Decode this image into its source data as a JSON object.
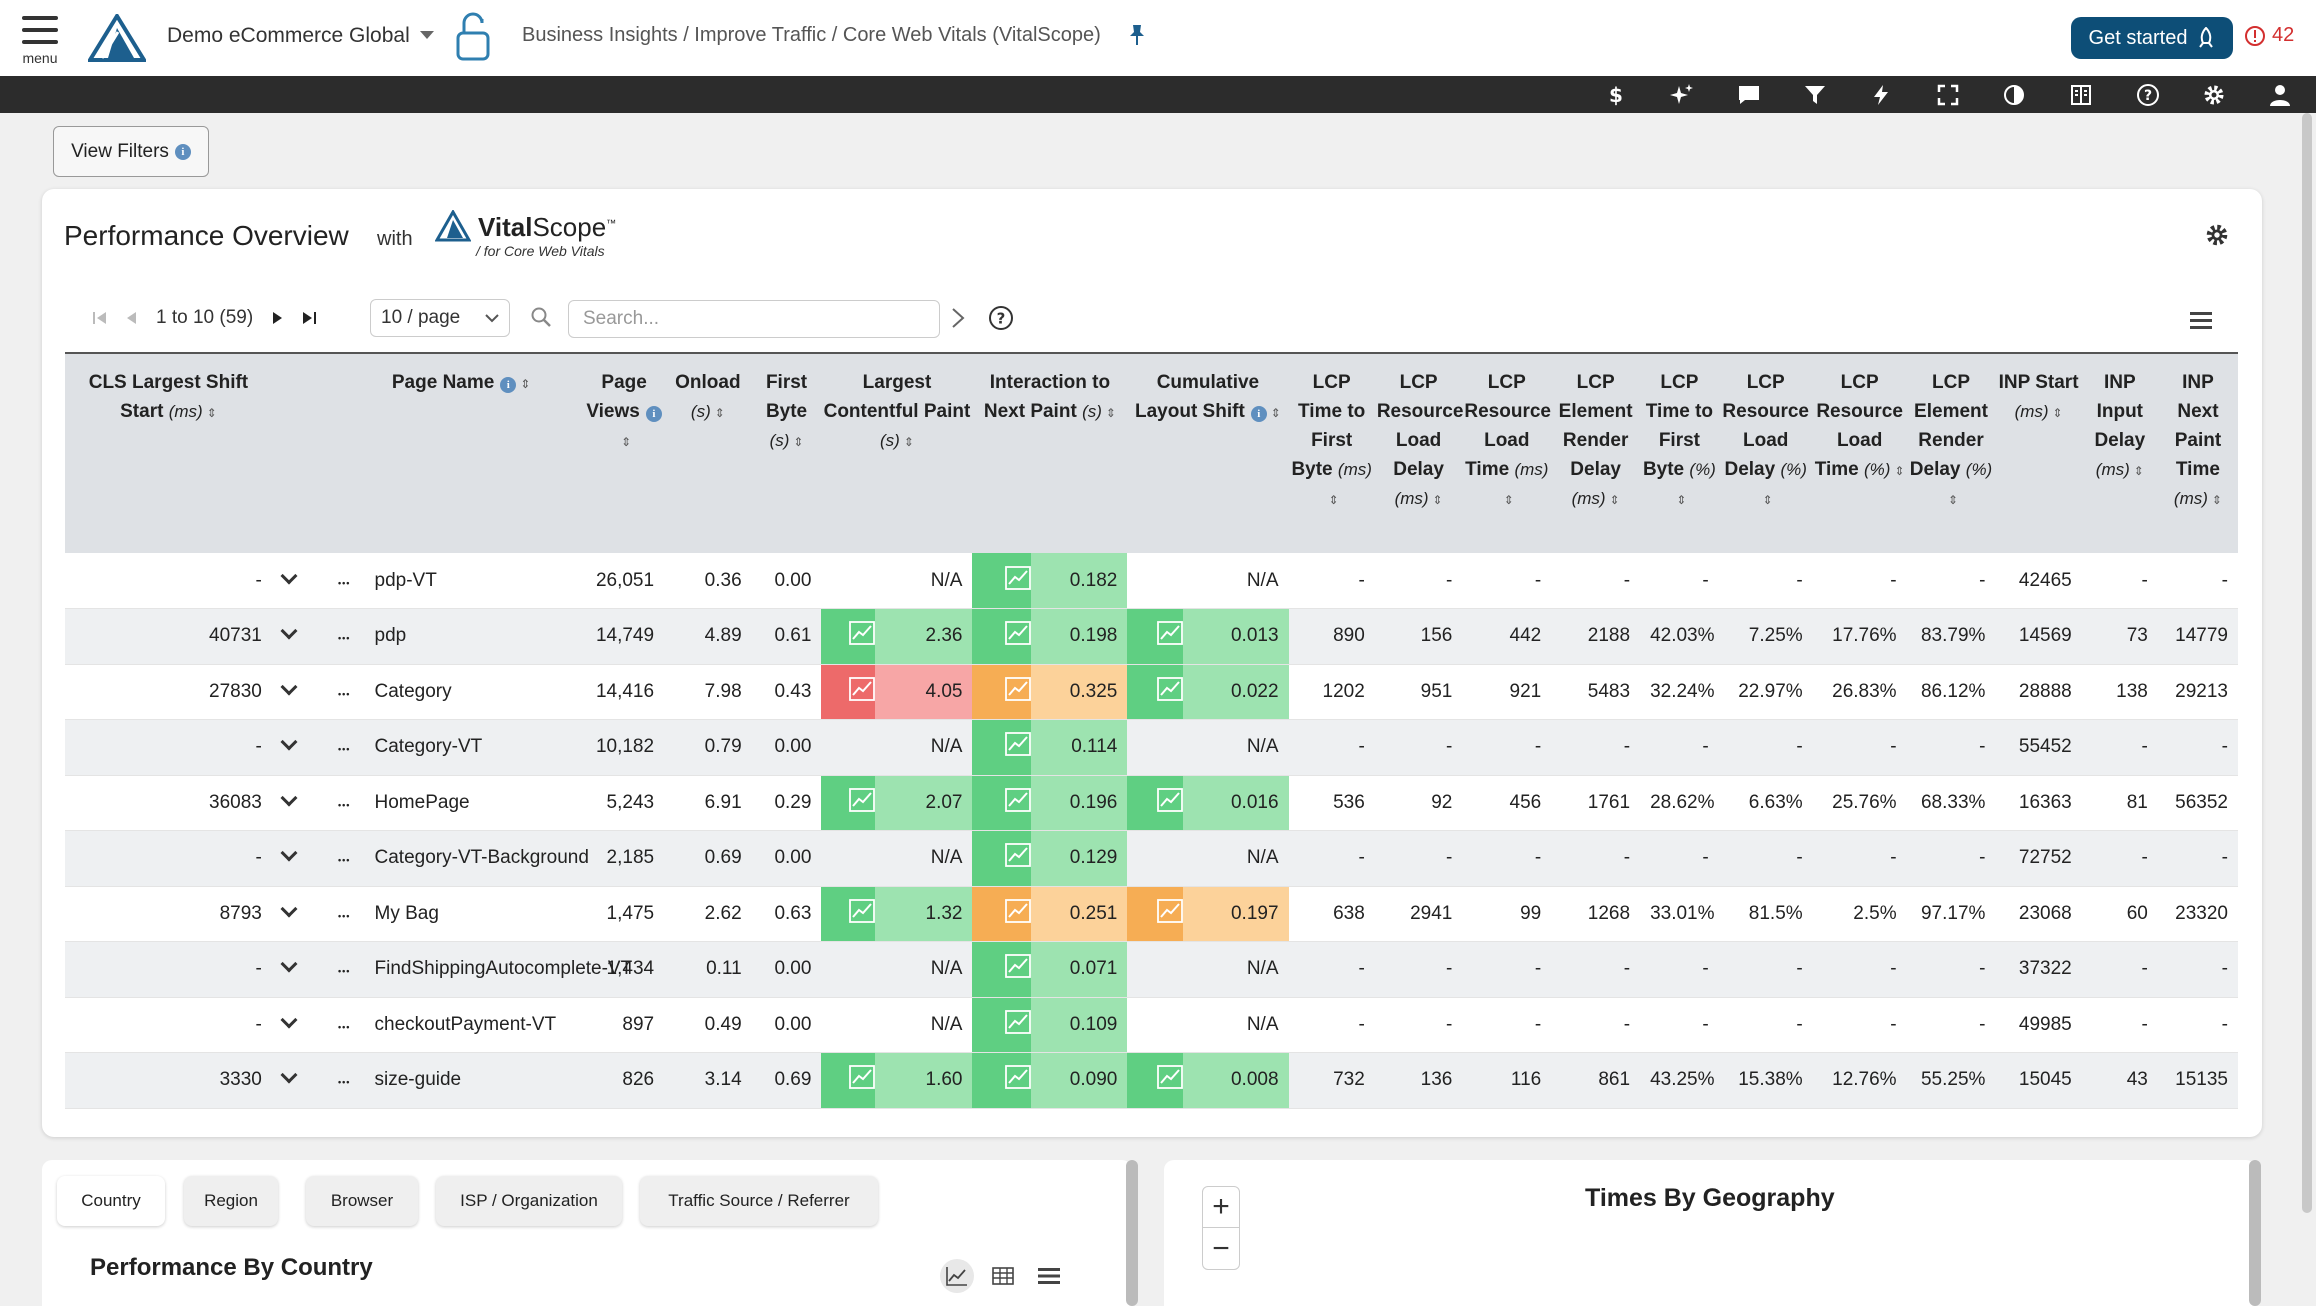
{
  "header": {
    "menu_label": "menu",
    "org_name": "Demo eCommerce Global",
    "breadcrumb": "Business Insights / Improve Traffic / Core Web Vitals (VitalScope)",
    "get_started": "Get started",
    "alert_count": "42",
    "brand_color": "#0d4e77"
  },
  "toolbar": {
    "icons": [
      "dollar-icon",
      "sparkle-icon",
      "chat-icon",
      "filter-icon",
      "bolt-icon",
      "fullscreen-icon",
      "contrast-icon",
      "book-icon",
      "help-icon",
      "gear-icon",
      "user-icon"
    ]
  },
  "filters": {
    "view_filters": "View Filters"
  },
  "panel": {
    "title": "Performance Overview",
    "with": "with",
    "brand_a": "Vital",
    "brand_b": "Scope",
    "brand_tm": "™",
    "brand_sub": "/ for Core Web Vitals",
    "pager_text": "1 to 10 (59)",
    "per_page": "10 / page",
    "search_placeholder": "Search..."
  },
  "table": {
    "columns": [
      {
        "t": "CLS Largest Shift Start",
        "u": "(ms)"
      },
      {
        "t": "Page Name",
        "u": ""
      },
      {
        "t": "Page Views",
        "u": ""
      },
      {
        "t": "Onload",
        "u": "(s)"
      },
      {
        "t": "First Byte",
        "u": "(s)"
      },
      {
        "t": "Largest Contentful Paint",
        "u": "(s)"
      },
      {
        "t": "Interaction to Next Paint",
        "u": "(s)"
      },
      {
        "t": "Cumulative Layout Shift",
        "u": ""
      },
      {
        "t": "LCP Time to First Byte",
        "u": "(ms)"
      },
      {
        "t": "LCP Resource Load Delay",
        "u": "(ms)"
      },
      {
        "t": "LCP Resource Load Time",
        "u": "(ms)"
      },
      {
        "t": "LCP Element Render Delay",
        "u": "(ms)"
      },
      {
        "t": "LCP Time to First Byte",
        "u": "(%)"
      },
      {
        "t": "LCP Resource Load Delay",
        "u": "(%)"
      },
      {
        "t": "LCP Resource Load Time",
        "u": "(%)"
      },
      {
        "t": "LCP Element Render Delay",
        "u": "(%)"
      },
      {
        "t": "INP Start",
        "u": "(ms)"
      },
      {
        "t": "INP Input Delay",
        "u": "(ms)"
      },
      {
        "t": "INP Next Paint Time",
        "u": "(ms)"
      }
    ],
    "rows": [
      {
        "cls": "-",
        "name": "pdp-VT",
        "views": "26,051",
        "onload": "0.36",
        "fb": "0.00",
        "lcp": "N/A",
        "lcp_c": "",
        "inp": "0.182",
        "inp_c": "g",
        "clsv": "N/A",
        "clsv_c": "",
        "m": [
          "-",
          "-",
          "-",
          "-",
          "-",
          "-",
          "-",
          "-"
        ],
        "inps": "42465",
        "inpd": "-",
        "inpn": "-"
      },
      {
        "cls": "40731",
        "name": "pdp",
        "views": "14,749",
        "onload": "4.89",
        "fb": "0.61",
        "lcp": "2.36",
        "lcp_c": "g",
        "inp": "0.198",
        "inp_c": "g",
        "clsv": "0.013",
        "clsv_c": "g",
        "m": [
          "890",
          "156",
          "442",
          "2188",
          "42.03%",
          "7.25%",
          "17.76%",
          "83.79%"
        ],
        "inps": "14569",
        "inpd": "73",
        "inpn": "14779"
      },
      {
        "cls": "27830",
        "name": "Category",
        "views": "14,416",
        "onload": "7.98",
        "fb": "0.43",
        "lcp": "4.05",
        "lcp_c": "r",
        "inp": "0.325",
        "inp_c": "o",
        "clsv": "0.022",
        "clsv_c": "g",
        "m": [
          "1202",
          "951",
          "921",
          "5483",
          "32.24%",
          "22.97%",
          "26.83%",
          "86.12%"
        ],
        "inps": "28888",
        "inpd": "138",
        "inpn": "29213"
      },
      {
        "cls": "-",
        "name": "Category-VT",
        "views": "10,182",
        "onload": "0.79",
        "fb": "0.00",
        "lcp": "N/A",
        "lcp_c": "",
        "inp": "0.114",
        "inp_c": "g",
        "clsv": "N/A",
        "clsv_c": "",
        "m": [
          "-",
          "-",
          "-",
          "-",
          "-",
          "-",
          "-",
          "-"
        ],
        "inps": "55452",
        "inpd": "-",
        "inpn": "-"
      },
      {
        "cls": "36083",
        "name": "HomePage",
        "views": "5,243",
        "onload": "6.91",
        "fb": "0.29",
        "lcp": "2.07",
        "lcp_c": "g",
        "inp": "0.196",
        "inp_c": "g",
        "clsv": "0.016",
        "clsv_c": "g",
        "m": [
          "536",
          "92",
          "456",
          "1761",
          "28.62%",
          "6.63%",
          "25.76%",
          "68.33%"
        ],
        "inps": "16363",
        "inpd": "81",
        "inpn": "56352"
      },
      {
        "cls": "-",
        "name": "Category-VT-Background",
        "views": "2,185",
        "onload": "0.69",
        "fb": "0.00",
        "lcp": "N/A",
        "lcp_c": "",
        "inp": "0.129",
        "inp_c": "g",
        "clsv": "N/A",
        "clsv_c": "",
        "m": [
          "-",
          "-",
          "-",
          "-",
          "-",
          "-",
          "-",
          "-"
        ],
        "inps": "72752",
        "inpd": "-",
        "inpn": "-"
      },
      {
        "cls": "8793",
        "name": "My Bag",
        "views": "1,475",
        "onload": "2.62",
        "fb": "0.63",
        "lcp": "1.32",
        "lcp_c": "g",
        "inp": "0.251",
        "inp_c": "o",
        "clsv": "0.197",
        "clsv_c": "o",
        "m": [
          "638",
          "2941",
          "99",
          "1268",
          "33.01%",
          "81.5%",
          "2.5%",
          "97.17%"
        ],
        "inps": "23068",
        "inpd": "60",
        "inpn": "23320"
      },
      {
        "cls": "-",
        "name": "FindShippingAutocomplete-VT",
        "views": "1,434",
        "onload": "0.11",
        "fb": "0.00",
        "lcp": "N/A",
        "lcp_c": "",
        "inp": "0.071",
        "inp_c": "g",
        "clsv": "N/A",
        "clsv_c": "",
        "m": [
          "-",
          "-",
          "-",
          "-",
          "-",
          "-",
          "-",
          "-"
        ],
        "inps": "37322",
        "inpd": "-",
        "inpn": "-"
      },
      {
        "cls": "-",
        "name": "checkoutPayment-VT",
        "views": "897",
        "onload": "0.49",
        "fb": "0.00",
        "lcp": "N/A",
        "lcp_c": "",
        "inp": "0.109",
        "inp_c": "g",
        "clsv": "N/A",
        "clsv_c": "",
        "m": [
          "-",
          "-",
          "-",
          "-",
          "-",
          "-",
          "-",
          "-"
        ],
        "inps": "49985",
        "inpd": "-",
        "inpn": "-"
      },
      {
        "cls": "3330",
        "name": "size-guide",
        "views": "826",
        "onload": "3.14",
        "fb": "0.69",
        "lcp": "1.60",
        "lcp_c": "g",
        "inp": "0.090",
        "inp_c": "g",
        "clsv": "0.008",
        "clsv_c": "g",
        "m": [
          "732",
          "136",
          "116",
          "861",
          "43.25%",
          "15.38%",
          "12.76%",
          "55.25%"
        ],
        "inps": "15045",
        "inpd": "43",
        "inpn": "15135"
      }
    ]
  },
  "bottom": {
    "tabs": [
      "Country",
      "Region",
      "Browser",
      "ISP / Organization",
      "Traffic Source / Referrer"
    ],
    "active_tab": "Country",
    "perf_country": "Performance By Country",
    "times_geo": "Times By Geography",
    "zoom_in": "+",
    "zoom_out": "−"
  }
}
